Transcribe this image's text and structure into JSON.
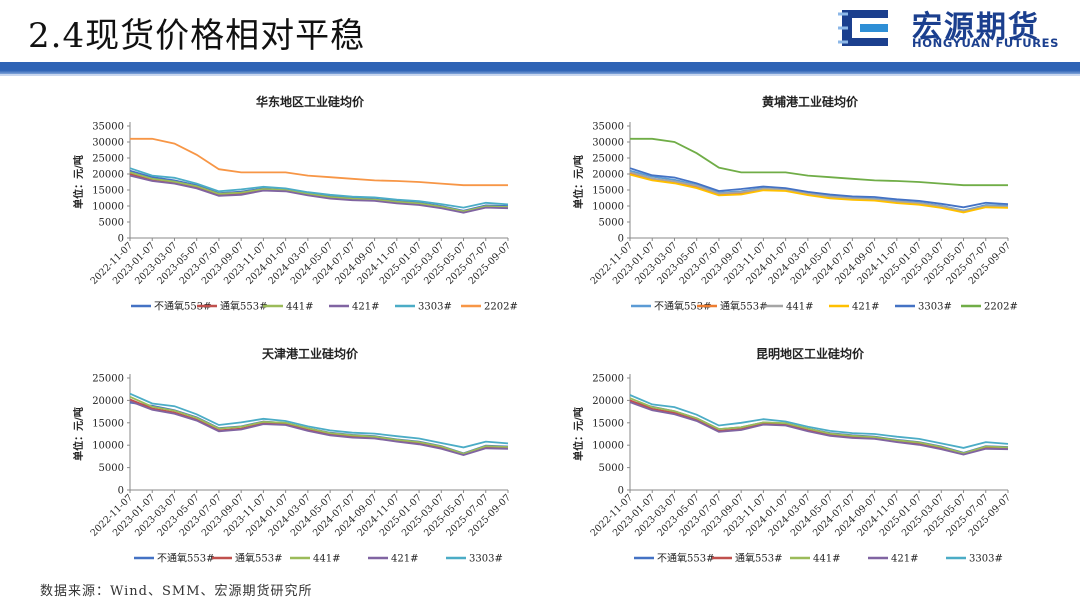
{
  "header": {
    "title": "2.4现货价格相对平稳",
    "brand_cn": "宏源期货",
    "brand_en": "HONGYUAN FUTURES"
  },
  "source": "数据来源：Wind、SMM、宏源期货研究所",
  "colors": {
    "header_band": "#2e63b5",
    "brand": "#1b3f8e"
  },
  "chart_data": [
    {
      "type": "line",
      "title": "华东地区工业硅均价",
      "ylabel": "单位：元/吨",
      "yticks": [
        0,
        5000,
        10000,
        15000,
        20000,
        25000,
        30000,
        35000
      ],
      "ylim": [
        0,
        35000
      ],
      "xticks": [
        "2022-11-07",
        "2023-01-07",
        "2023-03-07",
        "2023-05-07",
        "2023-07-07",
        "2023-09-07",
        "2023-11-07",
        "2024-01-07",
        "2024-03-07",
        "2024-05-07",
        "2024-07-07",
        "2024-09-07",
        "2024-11-07",
        "2025-01-07",
        "2025-03-07",
        "2025-05-07",
        "2025-07-07",
        "2025-09-07"
      ],
      "series": [
        {
          "name": "不通氧553#",
          "color": "#4472c4",
          "values": [
            21000,
            19000,
            18000,
            16500,
            14000,
            14500,
            15500,
            15000,
            14000,
            13000,
            12500,
            12200,
            11500,
            11000,
            10000,
            8500,
            10200,
            10000
          ]
        },
        {
          "name": "通氧553#",
          "color": "#c0504d",
          "values": [
            20000,
            18000,
            17200,
            15800,
            13500,
            13800,
            15000,
            14800,
            13500,
            12500,
            12000,
            11800,
            11000,
            10500,
            9500,
            8000,
            9600,
            9400
          ]
        },
        {
          "name": "441#",
          "color": "#9bbb59",
          "values": [
            20500,
            18500,
            17600,
            16200,
            13800,
            14200,
            15300,
            15000,
            13800,
            12800,
            12300,
            12000,
            11300,
            10800,
            9800,
            8300,
            9900,
            9700
          ]
        },
        {
          "name": "421#",
          "color": "#8064a2",
          "values": [
            19500,
            17800,
            17000,
            15500,
            13200,
            13500,
            14800,
            14600,
            13300,
            12300,
            11800,
            11600,
            10800,
            10300,
            9300,
            7900,
            9500,
            9300
          ]
        },
        {
          "name": "3303#",
          "color": "#4bacc6",
          "values": [
            21800,
            19500,
            18800,
            17000,
            14600,
            15200,
            16000,
            15500,
            14300,
            13500,
            12900,
            12700,
            12000,
            11500,
            10600,
            9500,
            11000,
            10500
          ]
        },
        {
          "name": "2202#",
          "color": "#f79646",
          "values": [
            31000,
            31000,
            29500,
            26000,
            21500,
            20500,
            20500,
            20500,
            19500,
            19000,
            18500,
            18000,
            17800,
            17500,
            17000,
            16500,
            16500,
            16500
          ]
        }
      ]
    },
    {
      "type": "line",
      "title": "黄埔港工业硅均价",
      "ylabel": "单位：元/吨",
      "yticks": [
        0,
        5000,
        10000,
        15000,
        20000,
        25000,
        30000,
        35000
      ],
      "ylim": [
        0,
        35000
      ],
      "xticks": [
        "2022-11-07",
        "2023-01-07",
        "2023-03-07",
        "2023-05-07",
        "2023-07-07",
        "2023-09-07",
        "2023-11-07",
        "2024-01-07",
        "2024-03-07",
        "2024-05-07",
        "2024-07-07",
        "2024-09-07",
        "2024-11-07",
        "2025-01-07",
        "2025-03-07",
        "2025-05-07",
        "2025-07-07",
        "2025-09-07"
      ],
      "series": [
        {
          "name": "不通氧553#",
          "color": "#5b9bd5",
          "values": [
            21000,
            19200,
            18200,
            16600,
            14200,
            14600,
            15600,
            15100,
            14100,
            13200,
            12600,
            12300,
            11600,
            11100,
            10100,
            8600,
            10300,
            10100
          ]
        },
        {
          "name": "通氧553#",
          "color": "#ed7d31",
          "values": [
            20200,
            18300,
            17400,
            15900,
            13600,
            13900,
            15100,
            14900,
            13600,
            12600,
            12100,
            11900,
            11100,
            10600,
            9600,
            8100,
            9700,
            9500
          ]
        },
        {
          "name": "441#",
          "color": "#a5a5a5",
          "values": [
            20600,
            18600,
            17700,
            16300,
            13900,
            14300,
            15400,
            15100,
            13900,
            12900,
            12400,
            12100,
            11400,
            10900,
            9900,
            8400,
            10000,
            9800
          ]
        },
        {
          "name": "421#",
          "color": "#ffc000",
          "values": [
            19800,
            18000,
            17100,
            15600,
            13300,
            13600,
            14900,
            14700,
            13400,
            12400,
            11900,
            11700,
            10900,
            10400,
            9400,
            8000,
            9600,
            9400
          ]
        },
        {
          "name": "3303#",
          "color": "#4472c4",
          "values": [
            21800,
            19600,
            18900,
            17100,
            14700,
            15300,
            16100,
            15600,
            14400,
            13600,
            13000,
            12800,
            12100,
            11600,
            10700,
            9600,
            11000,
            10600
          ]
        },
        {
          "name": "2202#",
          "color": "#70ad47",
          "values": [
            31000,
            31000,
            30000,
            26500,
            22000,
            20500,
            20500,
            20500,
            19500,
            19000,
            18500,
            18000,
            17800,
            17500,
            17000,
            16500,
            16500,
            16500
          ]
        }
      ]
    },
    {
      "type": "line",
      "title": "天津港工业硅均价",
      "ylabel": "单位：元/吨",
      "yticks": [
        0,
        5000,
        10000,
        15000,
        20000,
        25000
      ],
      "ylim": [
        0,
        25000
      ],
      "xticks": [
        "2022-11-07",
        "2023-01-07",
        "2023-03-07",
        "2023-05-07",
        "2023-07-07",
        "2023-09-07",
        "2023-11-07",
        "2024-01-07",
        "2024-03-07",
        "2024-05-07",
        "2024-07-07",
        "2024-09-07",
        "2024-11-07",
        "2025-01-07",
        "2025-03-07",
        "2025-05-07",
        "2025-07-07",
        "2025-09-07"
      ],
      "series": [
        {
          "name": "不通氧553#",
          "color": "#4472c4",
          "values": [
            19500,
            18800,
            17800,
            16200,
            13800,
            14200,
            15300,
            14900,
            13800,
            12800,
            12300,
            12000,
            11300,
            10800,
            9800,
            8200,
            9900,
            9700
          ]
        },
        {
          "name": "通氧553#",
          "color": "#c0504d",
          "values": [
            20200,
            18200,
            17300,
            15700,
            13300,
            13700,
            14900,
            14700,
            13400,
            12400,
            11900,
            11600,
            10900,
            10400,
            9400,
            7900,
            9500,
            9300
          ]
        },
        {
          "name": "441#",
          "color": "#9bbb59",
          "values": [
            20800,
            18600,
            17700,
            16100,
            13700,
            14100,
            15200,
            15000,
            13800,
            12700,
            12200,
            11900,
            11200,
            10700,
            9700,
            8100,
            9800,
            9600
          ]
        },
        {
          "name": "421#",
          "color": "#8064a2",
          "values": [
            19800,
            17900,
            17000,
            15500,
            13100,
            13500,
            14700,
            14500,
            13200,
            12200,
            11700,
            11500,
            10800,
            10200,
            9200,
            7800,
            9300,
            9200
          ]
        },
        {
          "name": "3303#",
          "color": "#4bacc6",
          "values": [
            21500,
            19300,
            18700,
            16900,
            14500,
            15100,
            15900,
            15400,
            14200,
            13300,
            12800,
            12600,
            12000,
            11500,
            10500,
            9500,
            10800,
            10400
          ]
        }
      ]
    },
    {
      "type": "line",
      "title": "昆明地区工业硅均价",
      "ylabel": "单位：元/吨",
      "yticks": [
        0,
        5000,
        10000,
        15000,
        20000,
        25000
      ],
      "ylim": [
        0,
        25000
      ],
      "xticks": [
        "2022-11-07",
        "2023-01-07",
        "2023-03-07",
        "2023-05-07",
        "2023-07-07",
        "2023-09-07",
        "2023-11-07",
        "2024-01-07",
        "2024-03-07",
        "2024-05-07",
        "2024-07-07",
        "2024-09-07",
        "2024-11-07",
        "2025-01-07",
        "2025-03-07",
        "2025-05-07",
        "2025-07-07",
        "2025-09-07"
      ],
      "series": [
        {
          "name": "不通氧553#",
          "color": "#4472c4",
          "values": [
            19800,
            18600,
            17600,
            16000,
            13600,
            14000,
            15100,
            14800,
            13700,
            12700,
            12200,
            11900,
            11200,
            10700,
            9700,
            8300,
            9800,
            9600
          ]
        },
        {
          "name": "通氧553#",
          "color": "#c0504d",
          "values": [
            20000,
            18100,
            17200,
            15600,
            13200,
            13600,
            14800,
            14600,
            13300,
            12300,
            11800,
            11500,
            10800,
            10300,
            9300,
            8000,
            9400,
            9200
          ]
        },
        {
          "name": "441#",
          "color": "#9bbb59",
          "values": [
            20500,
            18500,
            17600,
            16000,
            13600,
            14000,
            15100,
            14900,
            13700,
            12600,
            12100,
            11800,
            11100,
            10600,
            9600,
            8200,
            9700,
            9500
          ]
        },
        {
          "name": "421#",
          "color": "#8064a2",
          "values": [
            19600,
            17800,
            16900,
            15400,
            13000,
            13400,
            14600,
            14400,
            13100,
            12100,
            11600,
            11400,
            10700,
            10100,
            9100,
            7900,
            9200,
            9100
          ]
        },
        {
          "name": "3303#",
          "color": "#4bacc6",
          "values": [
            21200,
            19100,
            18500,
            16800,
            14400,
            15000,
            15800,
            15300,
            14100,
            13200,
            12700,
            12500,
            11900,
            11400,
            10400,
            9400,
            10700,
            10300
          ]
        }
      ]
    }
  ]
}
